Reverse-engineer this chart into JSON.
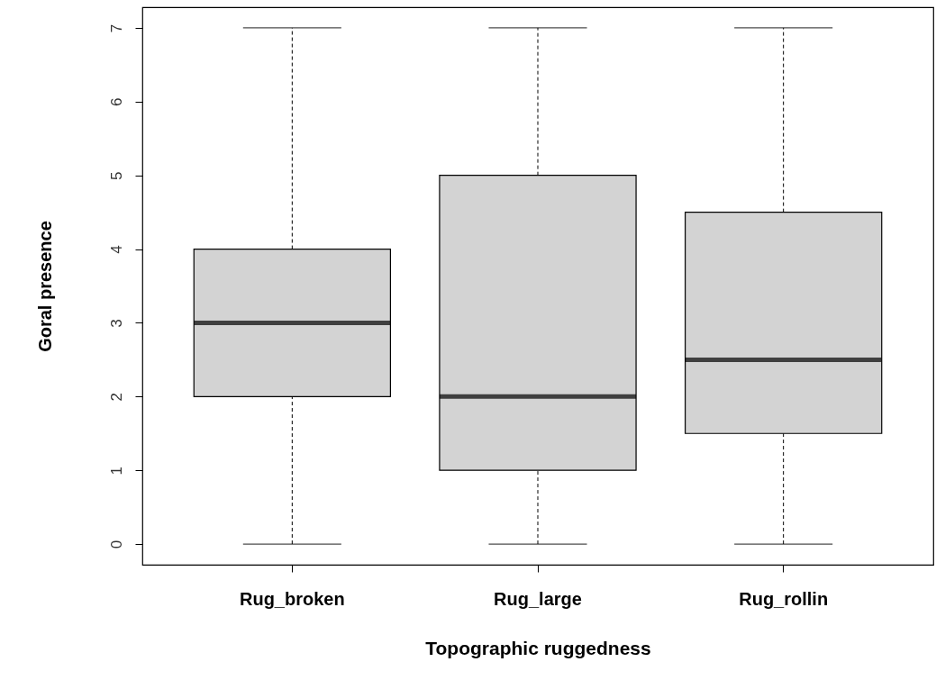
{
  "chart_data": {
    "type": "box",
    "xlabel": "Topographic ruggedness",
    "ylabel": "Goral presence",
    "categories": [
      "Rug_broken",
      "Rug_large",
      "Rug_rollin"
    ],
    "color": "#d3d3d3",
    "boxes": [
      {
        "low": 0,
        "q1": 2,
        "median": 3,
        "q3": 4,
        "high": 7
      },
      {
        "low": 0,
        "q1": 1,
        "median": 2,
        "q3": 5,
        "high": 7
      },
      {
        "low": 0,
        "q1": 1.5,
        "median": 2.5,
        "q3": 4.5,
        "high": 7
      }
    ],
    "ylim": [
      -0.28,
      7.28
    ],
    "yticks": [
      0,
      1,
      2,
      3,
      4,
      5,
      6,
      7
    ],
    "grid": false
  }
}
